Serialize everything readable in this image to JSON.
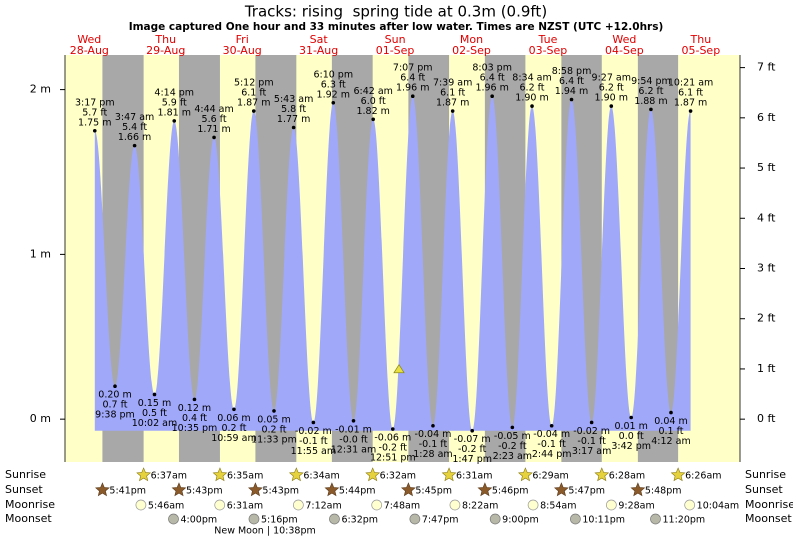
{
  "chart_data": {
    "type": "tide",
    "title": "Tracks: rising  spring tide at 0.3m (0.9ft)",
    "subtitle": "Image captured One hour and 33 minutes after low water. Times are NZST (UTC +12.0hrs)",
    "days": [
      {
        "name": "Wed",
        "date": "28-Aug"
      },
      {
        "name": "Thu",
        "date": "29-Aug"
      },
      {
        "name": "Fri",
        "date": "30-Aug"
      },
      {
        "name": "Sat",
        "date": "31-Aug"
      },
      {
        "name": "Sun",
        "date": "01-Sep"
      },
      {
        "name": "Mon",
        "date": "02-Sep"
      },
      {
        "name": "Tue",
        "date": "03-Sep"
      },
      {
        "name": "Wed",
        "date": "04-Sep"
      },
      {
        "name": "Thu",
        "date": "05-Sep"
      }
    ],
    "tides": [
      {
        "time": "3:17 pm",
        "height": 1.75,
        "height_label": "1.75 m",
        "feet_label": "5.7 ft"
      },
      {
        "time": "9:38 pm",
        "height": 0.2,
        "height_label": "0.20 m",
        "feet_label": "0.7 ft"
      },
      {
        "time": "3:47 am",
        "height": 1.66,
        "height_label": "1.66 m",
        "feet_label": "5.4 ft"
      },
      {
        "time": "10:02 am",
        "height": 0.15,
        "height_label": "0.15 m",
        "feet_label": "0.5 ft"
      },
      {
        "time": "4:14 pm",
        "height": 1.81,
        "height_label": "1.81 m",
        "feet_label": "5.9 ft"
      },
      {
        "time": "10:35 pm",
        "height": 0.12,
        "height_label": "0.12 m",
        "feet_label": "0.4 ft"
      },
      {
        "time": "4:44 am",
        "height": 1.71,
        "height_label": "1.71 m",
        "feet_label": "5.6 ft"
      },
      {
        "time": "10:59 am",
        "height": 0.06,
        "height_label": "0.06 m",
        "feet_label": "0.2 ft"
      },
      {
        "time": "5:12 pm",
        "height": 1.87,
        "height_label": "1.87 m",
        "feet_label": "6.1 ft"
      },
      {
        "time": "11:33 pm",
        "height": 0.05,
        "height_label": "0.05 m",
        "feet_label": "0.2 ft"
      },
      {
        "time": "5:43 am",
        "height": 1.77,
        "height_label": "1.77 m",
        "feet_label": "5.8 ft"
      },
      {
        "time": "11:55 am",
        "height": -0.02,
        "height_label": "-0.02 m",
        "feet_label": "-0.1 ft"
      },
      {
        "time": "6:10 pm",
        "height": 1.92,
        "height_label": "1.92 m",
        "feet_label": "6.3 ft"
      },
      {
        "time": "12:31 am",
        "height": -0.01,
        "height_label": "-0.01 m",
        "feet_label": "-0.0 ft"
      },
      {
        "time": "6:42 am",
        "height": 1.82,
        "height_label": "1.82 m",
        "feet_label": "6.0 ft"
      },
      {
        "time": "12:51 pm",
        "height": -0.06,
        "height_label": "-0.06 m",
        "feet_label": "-0.2 ft"
      },
      {
        "time": "7:07 pm",
        "height": 1.96,
        "height_label": "1.96 m",
        "feet_label": "6.4 ft"
      },
      {
        "time": "1:28 am",
        "height": -0.04,
        "height_label": "-0.04 m",
        "feet_label": "-0.1 ft"
      },
      {
        "time": "7:39 am",
        "height": 1.87,
        "height_label": "1.87 m",
        "feet_label": "6.1 ft"
      },
      {
        "time": "1:47 pm",
        "height": -0.07,
        "height_label": "-0.07 m",
        "feet_label": "-0.2 ft"
      },
      {
        "time": "8:03 pm",
        "height": 1.96,
        "height_label": "1.96 m",
        "feet_label": "6.4 ft"
      },
      {
        "time": "2:23 am",
        "height": -0.05,
        "height_label": "-0.05 m",
        "feet_label": "-0.2 ft"
      },
      {
        "time": "8:34 am",
        "height": 1.9,
        "height_label": "1.90 m",
        "feet_label": "6.2 ft"
      },
      {
        "time": "2:44 pm",
        "height": -0.04,
        "height_label": "-0.04 m",
        "feet_label": "-0.1 ft"
      },
      {
        "time": "8:58 pm",
        "height": 1.94,
        "height_label": "1.94 m",
        "feet_label": "6.4 ft"
      },
      {
        "time": "3:17 am",
        "height": -0.02,
        "height_label": "-0.02 m",
        "feet_label": "-0.1 ft"
      },
      {
        "time": "9:27 am",
        "height": 1.9,
        "height_label": "1.90 m",
        "feet_label": "6.2 ft"
      },
      {
        "time": "3:42 pm",
        "height": 0.01,
        "height_label": "0.01 m",
        "feet_label": "0.0 ft"
      },
      {
        "time": "9:54 pm",
        "height": 1.88,
        "height_label": "1.88 m",
        "feet_label": "6.2 ft"
      },
      {
        "time": "4:12 am",
        "height": 0.04,
        "height_label": "0.04 m",
        "feet_label": "0.1 ft"
      },
      {
        "time": "10:21 am",
        "height": 1.87,
        "height_label": "1.87 m",
        "feet_label": "6.1 ft"
      }
    ],
    "ylim": [
      -0.26,
      2.21
    ],
    "yticks": [
      {
        "value": 0,
        "label": "0 m"
      },
      {
        "value": 1,
        "label": "1 m"
      },
      {
        "value": 2,
        "label": "2 m"
      }
    ],
    "y2lim": [
      -0.853,
      7.251
    ],
    "y2ticks": [
      {
        "value": 0,
        "label": "0 ft"
      },
      {
        "value": 1,
        "label": "1 ft"
      },
      {
        "value": 2,
        "label": "2 ft"
      },
      {
        "value": 3,
        "label": "3 ft"
      },
      {
        "value": 4,
        "label": "4 ft"
      },
      {
        "value": 5,
        "label": "5 ft"
      },
      {
        "value": 6,
        "label": "6 ft"
      },
      {
        "value": 7,
        "label": "7 ft"
      }
    ],
    "current_height": 0.3,
    "color": "#a0a8fa"
  },
  "sun_moon": {
    "sunrise": {
      "label": "Sunrise",
      "times": [
        "6:37am",
        "6:35am",
        "6:34am",
        "6:32am",
        "6:31am",
        "6:29am",
        "6:28am",
        "6:26am"
      ]
    },
    "sunset": {
      "label": "Sunset",
      "times": [
        "5:41pm",
        "5:43pm",
        "5:43pm",
        "5:44pm",
        "5:45pm",
        "5:46pm",
        "5:47pm",
        "5:48pm"
      ]
    },
    "moonrise": {
      "label": "Moonrise",
      "times": [
        "5:46am",
        "6:31am",
        "7:12am",
        "7:48am",
        "8:22am",
        "8:54am",
        "9:28am",
        "10:04am"
      ]
    },
    "moonset": {
      "label": "Moonset",
      "times": [
        "4:00pm",
        "5:16pm",
        "6:32pm",
        "7:47pm",
        "9:00pm",
        "10:11pm",
        "11:20pm"
      ]
    }
  },
  "moon_phase": "New Moon | 10:38pm"
}
